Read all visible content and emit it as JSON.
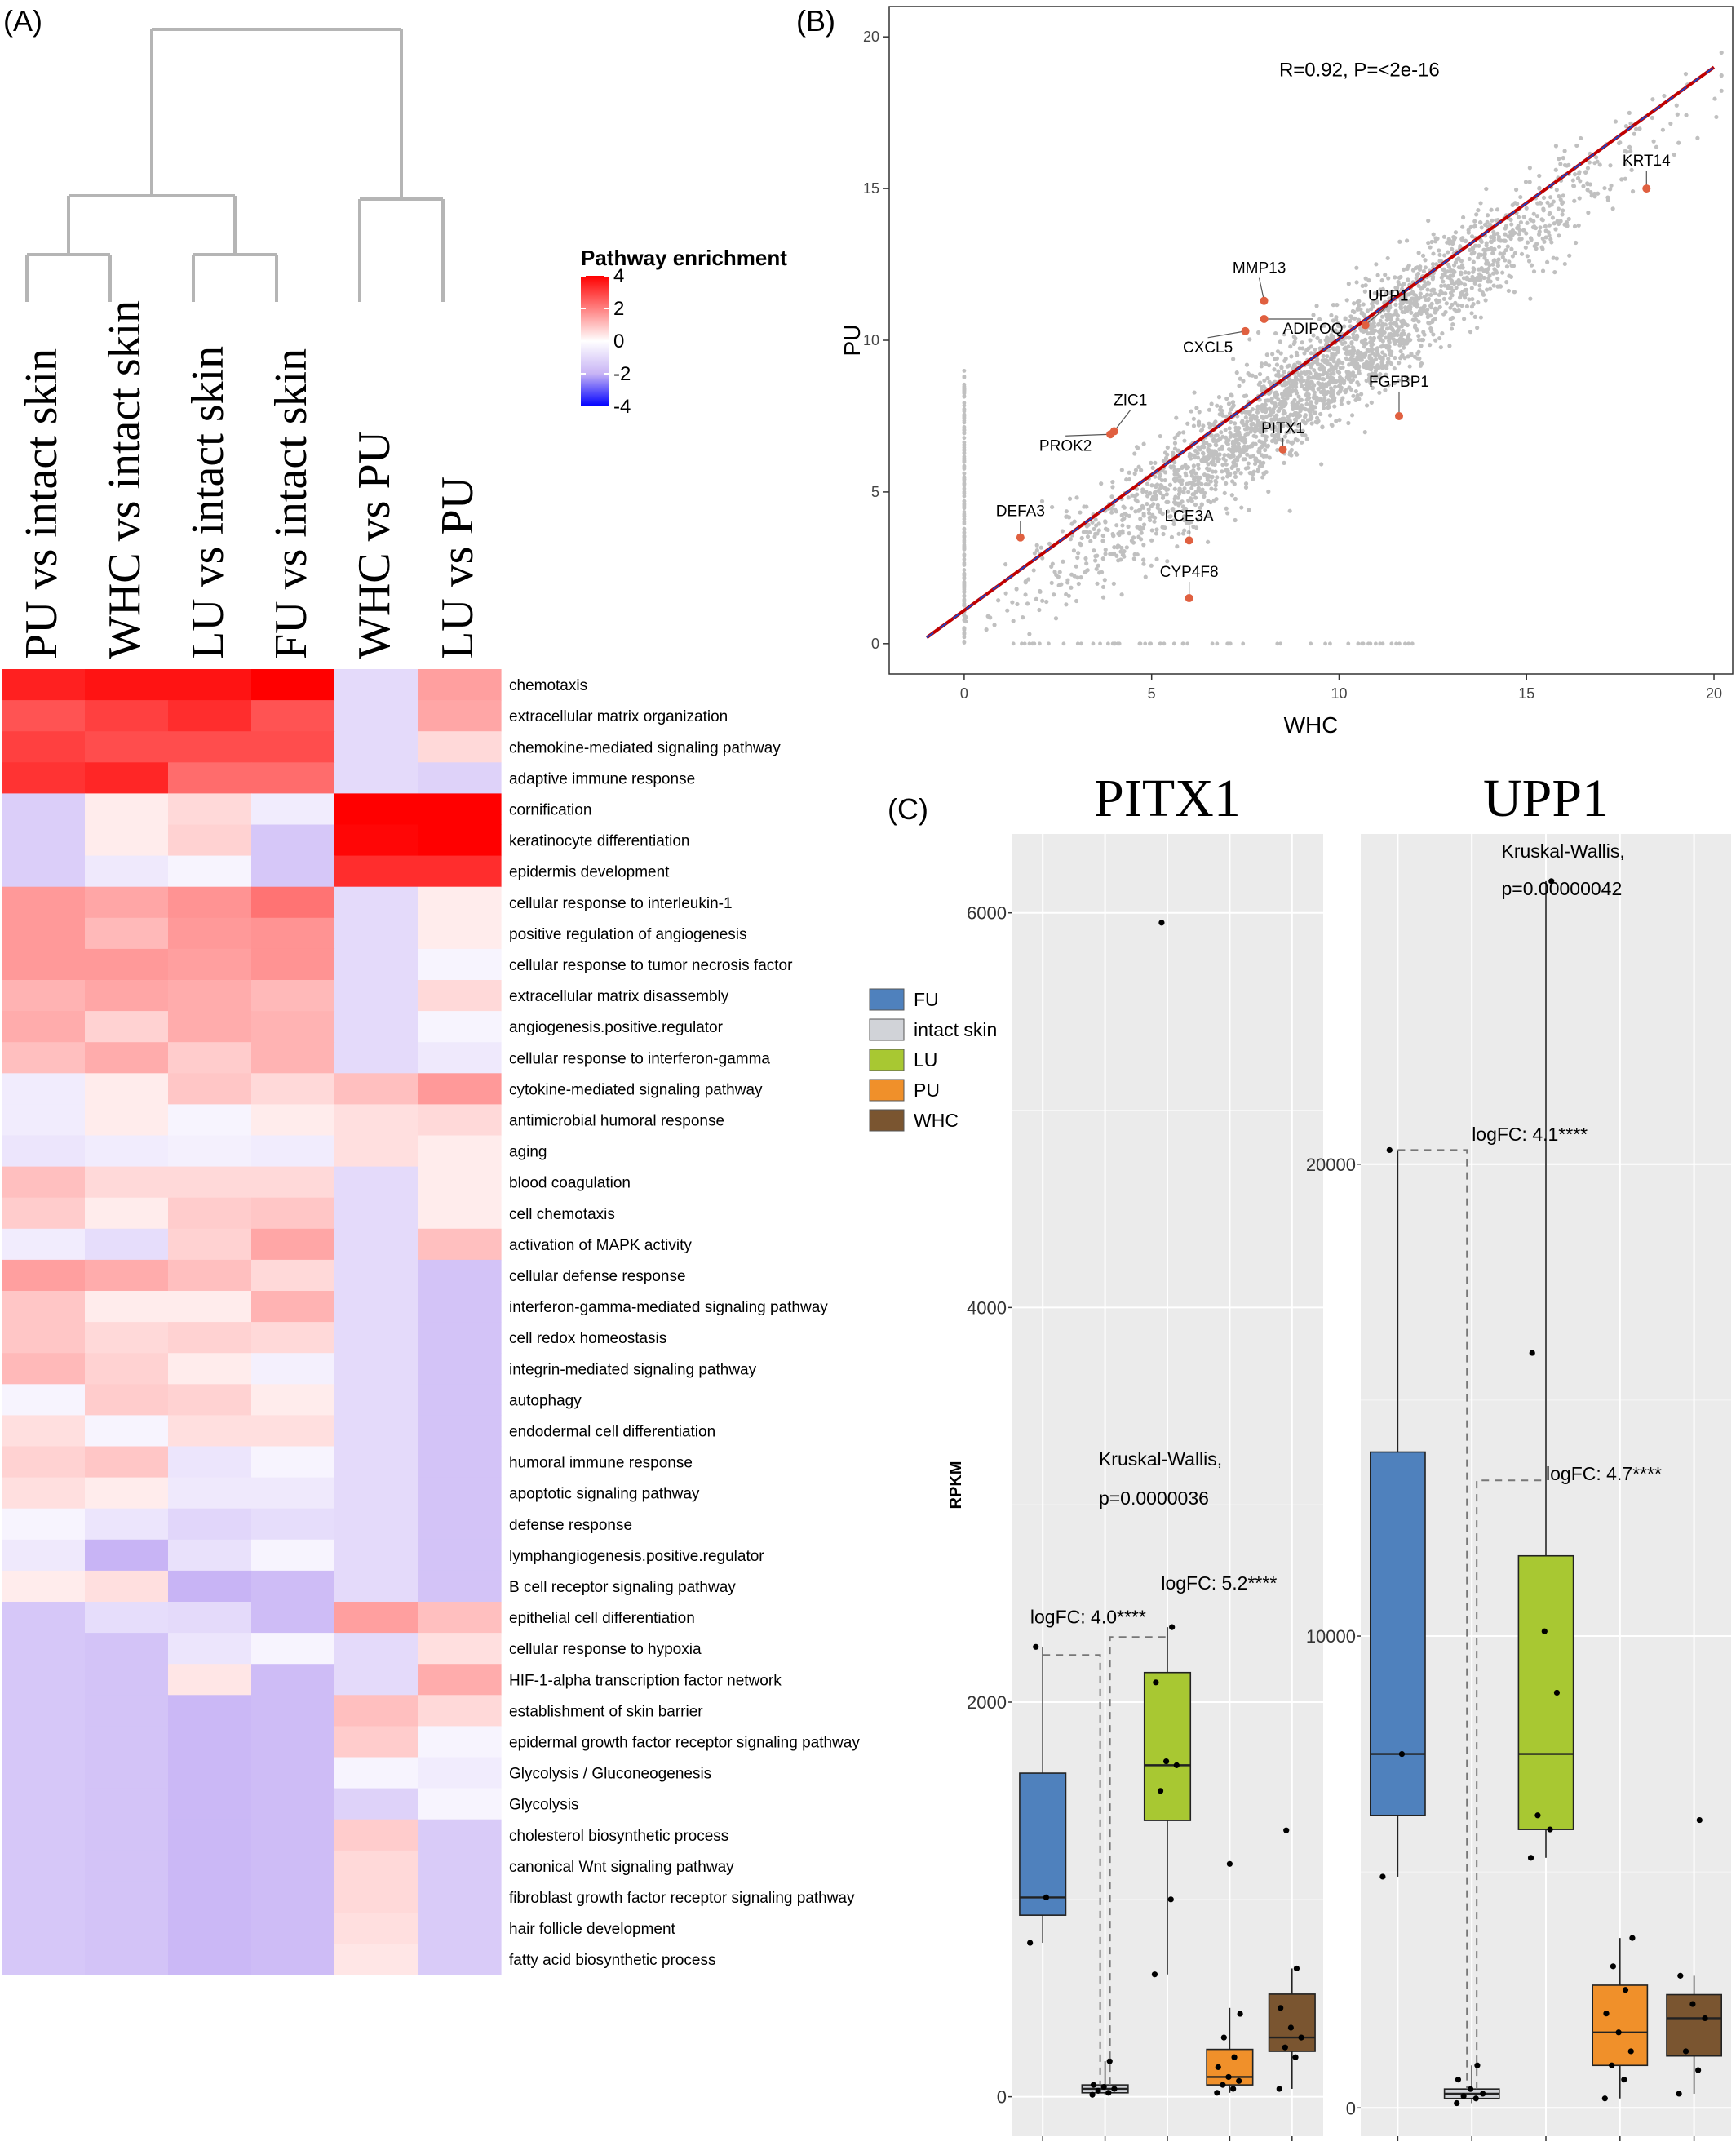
{
  "panel_labels": {
    "a": "(A)",
    "b": "(B)",
    "c": "(C)"
  },
  "chart_data": [
    {
      "type": "heatmap",
      "panel": "(A)",
      "columns": [
        "PU vs intact skin",
        "WHC vs intact skin",
        "LU vs intact skin",
        "FU vs intact skin",
        "WHC vs PU",
        "LU vs PU"
      ],
      "legend": {
        "title": "Pathway enrichment",
        "ticks": [
          4,
          2,
          0,
          -2,
          -4
        ],
        "low_color": "#0000ff",
        "mid_color": "#ffffff",
        "high_color": "#ff0000",
        "range": [
          -4,
          4
        ]
      },
      "rows": [
        {
          "name": "chemotaxis",
          "values": [
            3.5,
            3.7,
            3.7,
            4.0,
            -1.0,
            1.5
          ]
        },
        {
          "name": "extracellular matrix organization",
          "values": [
            2.7,
            3.0,
            3.3,
            2.7,
            -1.0,
            1.4
          ]
        },
        {
          "name": "chemokine-mediated signaling pathway",
          "values": [
            3.0,
            2.8,
            2.8,
            2.8,
            -1.0,
            0.6
          ]
        },
        {
          "name": "adaptive immune response",
          "values": [
            3.2,
            3.4,
            2.3,
            2.3,
            -1.0,
            -1.2
          ]
        },
        {
          "name": "cornification",
          "values": [
            -1.3,
            0.3,
            0.6,
            -0.5,
            4.0,
            4.0
          ]
        },
        {
          "name": "keratinocyte differentiation",
          "values": [
            -1.3,
            0.3,
            0.7,
            -1.5,
            3.9,
            4.0
          ]
        },
        {
          "name": "epidermis development",
          "values": [
            -1.3,
            -0.6,
            -0.3,
            -1.5,
            3.3,
            3.3
          ]
        },
        {
          "name": "cellular response to interleukin-1",
          "values": [
            1.6,
            1.4,
            1.7,
            2.2,
            -1.0,
            0.3
          ]
        },
        {
          "name": "positive regulation of angiogenesis",
          "values": [
            1.6,
            1.1,
            1.6,
            1.7,
            -1.0,
            0.3
          ]
        },
        {
          "name": "cellular response to tumor necrosis factor",
          "values": [
            1.6,
            1.6,
            1.5,
            1.7,
            -1.0,
            -0.3
          ]
        },
        {
          "name": "extracellular matrix disassembly",
          "values": [
            1.2,
            1.4,
            1.3,
            1.1,
            -1.0,
            0.6
          ]
        },
        {
          "name": "angiogenesis.positive.regulator",
          "values": [
            1.3,
            0.7,
            1.3,
            1.2,
            -1.0,
            -0.3
          ]
        },
        {
          "name": "cellular response to interferon-gamma",
          "values": [
            1.0,
            1.3,
            0.8,
            1.2,
            -1.0,
            -0.6
          ]
        },
        {
          "name": "cytokine-mediated signaling pathway",
          "values": [
            -0.5,
            0.3,
            0.9,
            0.6,
            1.0,
            1.6
          ]
        },
        {
          "name": "antimicrobial humoral response",
          "values": [
            -0.5,
            0.3,
            -0.3,
            0.3,
            0.5,
            0.6
          ]
        },
        {
          "name": "aging",
          "values": [
            -0.7,
            -0.5,
            -0.4,
            -0.5,
            0.5,
            0.3
          ]
        },
        {
          "name": "blood coagulation",
          "values": [
            1.0,
            0.6,
            0.6,
            0.6,
            -1.0,
            0.3
          ]
        },
        {
          "name": "cell chemotaxis",
          "values": [
            0.8,
            0.3,
            0.8,
            0.9,
            -1.0,
            0.3
          ]
        },
        {
          "name": "activation of MAPK activity",
          "values": [
            -0.5,
            -0.9,
            0.7,
            1.4,
            -1.0,
            1.0
          ]
        },
        {
          "name": "cellular defense response",
          "values": [
            1.5,
            1.3,
            1.0,
            0.6,
            -1.0,
            -1.6
          ]
        },
        {
          "name": "interferon-gamma-mediated signaling pathway",
          "values": [
            0.9,
            0.3,
            0.3,
            1.2,
            -1.0,
            -1.6
          ]
        },
        {
          "name": "cell redox homeostasis",
          "values": [
            0.9,
            0.6,
            0.7,
            0.6,
            -1.0,
            -1.6
          ]
        },
        {
          "name": "integrin-mediated signaling pathway",
          "values": [
            1.1,
            0.7,
            0.3,
            -0.4,
            -1.0,
            -1.6
          ]
        },
        {
          "name": "autophagy",
          "values": [
            -0.3,
            0.8,
            0.7,
            0.3,
            -1.0,
            -1.6
          ]
        },
        {
          "name": "endodermal cell differentiation",
          "values": [
            0.5,
            -0.3,
            0.5,
            0.5,
            -1.0,
            -1.6
          ]
        },
        {
          "name": "humoral immune response",
          "values": [
            0.7,
            0.9,
            -0.7,
            -0.3,
            -1.0,
            -1.6
          ]
        },
        {
          "name": "apoptotic signaling pathway",
          "values": [
            0.5,
            0.3,
            -0.6,
            -0.6,
            -1.0,
            -1.6
          ]
        },
        {
          "name": "defense response",
          "values": [
            -0.3,
            -0.7,
            -1.1,
            -0.9,
            -1.0,
            -1.6
          ]
        },
        {
          "name": "lymphangiogenesis.positive.regulator",
          "values": [
            -0.6,
            -2.0,
            -0.8,
            -0.3,
            -1.0,
            -1.6
          ]
        },
        {
          "name": "B cell receptor signaling pathway",
          "values": [
            0.3,
            0.5,
            -2.0,
            -1.8,
            -1.0,
            -1.6
          ]
        },
        {
          "name": "epithelial cell differentiation",
          "values": [
            -1.5,
            -0.9,
            -1.0,
            -1.8,
            1.5,
            1.0
          ]
        },
        {
          "name": "cellular response to hypoxia",
          "values": [
            -1.5,
            -1.6,
            -0.7,
            -0.3,
            -1.0,
            0.5
          ]
        },
        {
          "name": "HIF-1-alpha transcription factor network",
          "values": [
            -1.5,
            -1.6,
            0.4,
            -1.8,
            -1.0,
            1.3
          ]
        },
        {
          "name": "establishment of skin barrier",
          "values": [
            -1.5,
            -1.6,
            -1.9,
            -1.8,
            1.0,
            0.6
          ]
        },
        {
          "name": "epidermal growth factor receptor signaling pathway",
          "values": [
            -1.5,
            -1.6,
            -1.9,
            -1.8,
            0.8,
            -0.3
          ]
        },
        {
          "name": "Glycolysis / Gluconeogenesis",
          "values": [
            -1.5,
            -1.6,
            -1.9,
            -1.8,
            -0.3,
            -0.5
          ]
        },
        {
          "name": "Glycolysis",
          "values": [
            -1.5,
            -1.6,
            -1.9,
            -1.8,
            -1.2,
            -0.3
          ]
        },
        {
          "name": "cholesterol biosynthetic process",
          "values": [
            -1.5,
            -1.6,
            -1.9,
            -1.8,
            0.8,
            -1.4
          ]
        },
        {
          "name": "canonical Wnt signaling pathway",
          "values": [
            -1.5,
            -1.6,
            -1.9,
            -1.8,
            0.6,
            -1.4
          ]
        },
        {
          "name": "fibroblast growth factor receptor signaling pathway",
          "values": [
            -1.5,
            -1.6,
            -1.9,
            -1.8,
            0.6,
            -1.4
          ]
        },
        {
          "name": "hair follicle development",
          "values": [
            -1.5,
            -1.6,
            -1.9,
            -1.8,
            0.5,
            -1.4
          ]
        },
        {
          "name": "fatty acid biosynthetic process",
          "values": [
            -1.5,
            -1.6,
            -1.9,
            -1.8,
            0.4,
            -1.4
          ]
        }
      ]
    },
    {
      "type": "scatter",
      "panel": "(B)",
      "xlabel": "WHC",
      "ylabel": "PU",
      "xlim": [
        -2,
        20.5
      ],
      "ylim": [
        -1,
        21
      ],
      "xticks": [
        0,
        5,
        10,
        15,
        20
      ],
      "yticks": [
        0,
        5,
        10,
        15,
        20
      ],
      "annotation": "R=0.92, P=<2e-16",
      "fit_line": {
        "x": [
          -1,
          20
        ],
        "y": [
          0.2,
          19
        ]
      },
      "highlighted": [
        {
          "label": "KRT14",
          "x": 18.2,
          "y": 15.0
        },
        {
          "label": "MMP13",
          "x": 8.0,
          "y": 11.3
        },
        {
          "label": "UPP1",
          "x": 10.7,
          "y": 10.5
        },
        {
          "label": "ADIPOQ",
          "x": 8.0,
          "y": 10.7
        },
        {
          "label": "CXCL5",
          "x": 7.5,
          "y": 10.3
        },
        {
          "label": "FGFBP1",
          "x": 11.6,
          "y": 7.5
        },
        {
          "label": "ZIC1",
          "x": 4.0,
          "y": 7.0
        },
        {
          "label": "PROK2",
          "x": 3.9,
          "y": 6.9
        },
        {
          "label": "PITX1",
          "x": 8.5,
          "y": 6.4
        },
        {
          "label": "DEFA3",
          "x": 1.5,
          "y": 3.5
        },
        {
          "label": "LCE3A",
          "x": 6.0,
          "y": 3.4
        },
        {
          "label": "CYP4F8",
          "x": 6.0,
          "y": 1.5
        }
      ]
    },
    {
      "type": "box",
      "panel": "(C)",
      "title": "PITX1",
      "ylabel": "RPKM",
      "ylim": [
        -200,
        6400
      ],
      "yticks": [
        0,
        2000,
        4000,
        6000
      ],
      "groups": [
        "FU",
        "intact skin",
        "LU",
        "PU",
        "WHC"
      ],
      "boxes": [
        {
          "group": "FU",
          "min": 780,
          "q1": 920,
          "median": 1010,
          "q3": 1640,
          "max": 2280,
          "points": [
            780,
            1010,
            2280
          ]
        },
        {
          "group": "intact skin",
          "min": 10,
          "q1": 20,
          "median": 40,
          "q3": 60,
          "max": 180,
          "points": [
            10,
            20,
            30,
            40,
            50,
            60,
            180
          ]
        },
        {
          "group": "LU",
          "min": 620,
          "q1": 1400,
          "median": 1680,
          "q3": 2150,
          "max": 2380,
          "points": [
            620,
            1000,
            1550,
            1680,
            1700,
            2100,
            2380,
            5950
          ]
        },
        {
          "group": "PU",
          "min": 20,
          "q1": 60,
          "median": 100,
          "q3": 240,
          "max": 450,
          "points": [
            20,
            40,
            60,
            80,
            100,
            150,
            200,
            300,
            420,
            1180
          ]
        },
        {
          "group": "WHC",
          "min": 40,
          "q1": 230,
          "median": 300,
          "q3": 520,
          "max": 650,
          "points": [
            40,
            200,
            250,
            300,
            350,
            450,
            650,
            1350
          ]
        }
      ],
      "annotations": [
        {
          "text": "Kruskal-Wallis,",
          "x": 1.5,
          "y": 3200
        },
        {
          "text": "p=0.0000036",
          "x": 1.5,
          "y": 3000
        },
        {
          "text": "logFC: 4.0****",
          "x": 0.8,
          "y": 2400
        },
        {
          "text": "logFC: 5.2****",
          "x": 2.9,
          "y": 2570
        }
      ]
    },
    {
      "type": "box",
      "panel": "(C)",
      "title": "UPP1",
      "ylim": [
        -600,
        27000
      ],
      "yticks": [
        0,
        10000,
        20000
      ],
      "groups": [
        "FU",
        "intact skin",
        "LU",
        "PU",
        "WHC"
      ],
      "boxes": [
        {
          "group": "FU",
          "min": 4900,
          "q1": 6200,
          "median": 7500,
          "q3": 13900,
          "max": 20300,
          "points": [
            4900,
            7500,
            20300
          ]
        },
        {
          "group": "intact skin",
          "min": 100,
          "q1": 200,
          "median": 300,
          "q3": 400,
          "max": 900,
          "points": [
            100,
            200,
            250,
            300,
            400,
            600,
            900
          ]
        },
        {
          "group": "LU",
          "min": 5300,
          "q1": 5900,
          "median": 7500,
          "q3": 11700,
          "max": 26000,
          "points": [
            5300,
            5900,
            6200,
            8800,
            10100,
            16000,
            26000
          ]
        },
        {
          "group": "PU",
          "min": 200,
          "q1": 900,
          "median": 1600,
          "q3": 2600,
          "max": 3600,
          "points": [
            200,
            600,
            900,
            1200,
            1600,
            2000,
            2500,
            3000,
            3600
          ]
        },
        {
          "group": "WHC",
          "min": 300,
          "q1": 1100,
          "median": 1900,
          "q3": 2400,
          "max": 2800,
          "points": [
            300,
            800,
            1200,
            1900,
            2200,
            2800,
            6100
          ]
        }
      ],
      "annotations": [
        {
          "text": "Kruskal-Wallis,",
          "x": 2.0,
          "y": 26500
        },
        {
          "text": "p=0.00000042",
          "x": 2.0,
          "y": 25700
        },
        {
          "text": "logFC: 4.1****",
          "x": 2.0,
          "y": 20500
        },
        {
          "text": "logFC: 4.7****",
          "x": 3.0,
          "y": 13300
        }
      ]
    }
  ],
  "legend_c": {
    "items": [
      {
        "label": "FU",
        "color": "#4f81bd"
      },
      {
        "label": "intact skin",
        "color": "#d1d3d8"
      },
      {
        "label": "LU",
        "color": "#a8c832"
      },
      {
        "label": "PU",
        "color": "#f0902a"
      },
      {
        "label": "WHC",
        "color": "#7a5530"
      }
    ]
  },
  "colors": {
    "scatter_points": "#c0c0c0",
    "highlight_points": "#e06040",
    "fit_line_red": "#c00000",
    "fit_line_blue": "#2040c0",
    "panel_bg": "#ebebeb"
  }
}
